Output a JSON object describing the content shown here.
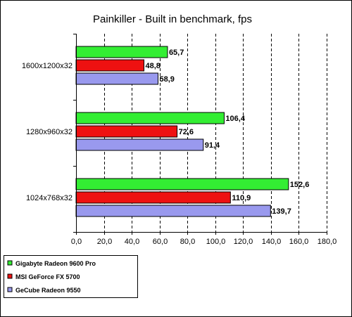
{
  "chart_data": {
    "type": "bar",
    "orientation": "horizontal",
    "title": "Painkiller - Built in benchmark, fps",
    "categories": [
      "1600x1200x32",
      "1280x960x32",
      "1024x768x32"
    ],
    "series": [
      {
        "name": "Gigabyte Radeon 9600 Pro",
        "color": "#33ee33",
        "values": [
          65.7,
          106.4,
          152.6
        ],
        "labels": [
          "65,7",
          "106,4",
          "152,6"
        ]
      },
      {
        "name": "MSI GeForce FX 5700",
        "color": "#ee1111",
        "values": [
          48.8,
          72.6,
          110.9
        ],
        "labels": [
          "48,8",
          "72,6",
          "110,9"
        ]
      },
      {
        "name": "GeCube Radeon 9550",
        "color": "#9999ee",
        "values": [
          58.9,
          91.4,
          139.7
        ],
        "labels": [
          "58,9",
          "91,4",
          "139,7"
        ]
      }
    ],
    "xlim": [
      0,
      180
    ],
    "ticks": [
      0,
      20,
      40,
      60,
      80,
      100,
      120,
      140,
      160,
      180
    ],
    "tick_labels": [
      "0,0",
      "20,0",
      "40,0",
      "60,0",
      "80,0",
      "100,0",
      "120,0",
      "140,0",
      "160,0",
      "180,0"
    ],
    "grid": "vertical dashed",
    "legend": "bottom-left"
  }
}
